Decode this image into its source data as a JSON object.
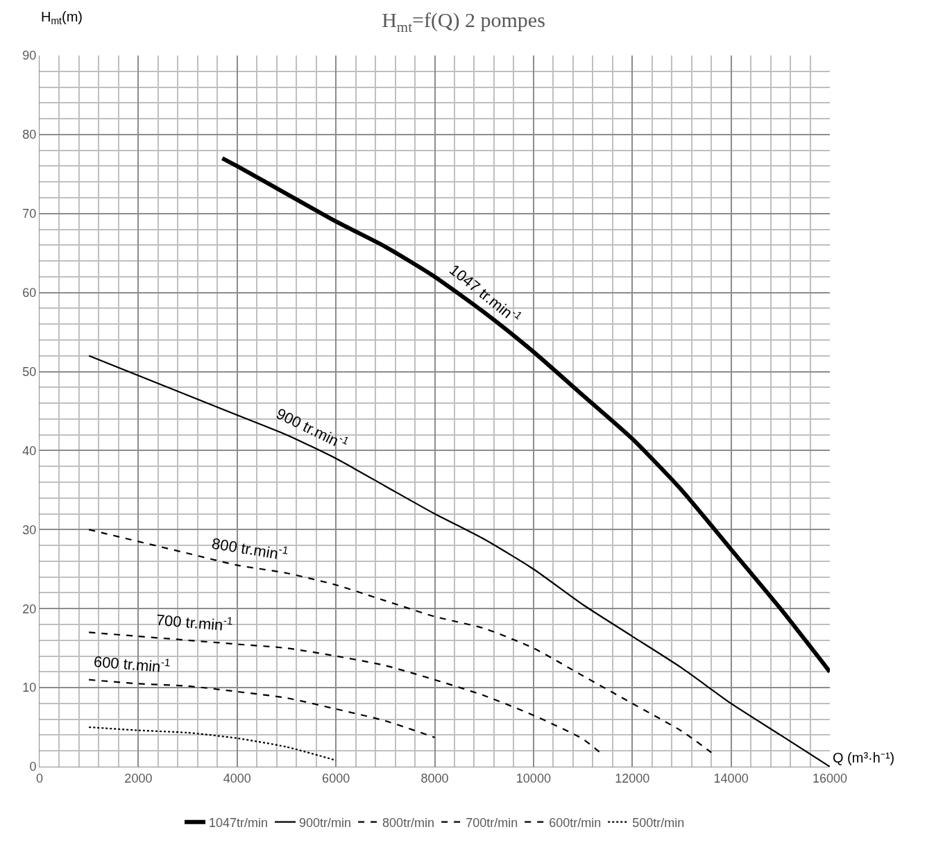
{
  "chart_data": {
    "type": "line",
    "title": "H$_{mt}$=f(Q) 2 pompes",
    "xlabel": "Q (m³·h⁻¹)",
    "ylabel": "H$_{mt}$(m)",
    "xlim": [
      0,
      16000
    ],
    "xticks": [
      0,
      2000,
      4000,
      6000,
      8000,
      10000,
      12000,
      14000,
      16000
    ],
    "ylim": [
      0,
      90
    ],
    "yticks": [
      0,
      10,
      20,
      30,
      40,
      50,
      60,
      70,
      80,
      90
    ],
    "grid": true,
    "legend": "bottom",
    "marker": "none",
    "series": [
      {
        "name": "1047tr/min",
        "color": "#000000",
        "line_style": "solid",
        "x": [
          3700,
          4000,
          5000,
          6000,
          7000,
          8000,
          9000,
          10000,
          11000,
          12000,
          13000,
          14000,
          15000,
          16000
        ],
        "values": [
          77,
          76,
          72.5,
          69,
          65.8,
          62,
          57.5,
          52.5,
          47,
          41.5,
          35,
          27.5,
          20,
          12
        ]
      },
      {
        "name": "900tr/min",
        "color": "#000000",
        "line_style": "solid",
        "x": [
          1000,
          2000,
          3000,
          4000,
          5000,
          6000,
          7000,
          8000,
          9000,
          10000,
          11000,
          12000,
          13000,
          14000,
          15000,
          16000
        ],
        "values": [
          52,
          49.5,
          47,
          44.5,
          42,
          39,
          35.5,
          32,
          28.8,
          25,
          20.5,
          16.5,
          12.5,
          8,
          4,
          0
        ]
      },
      {
        "name": "800tr/min",
        "color": "#000000",
        "line_style": "dashed",
        "x": [
          1000,
          2000,
          3000,
          4000,
          5000,
          6000,
          7000,
          8000,
          9000,
          10000,
          11000,
          12000,
          13000,
          13600
        ],
        "values": [
          30,
          28.5,
          27,
          25.5,
          24.5,
          23,
          21,
          19,
          17.5,
          15,
          11.5,
          8,
          4.5,
          1.8
        ]
      },
      {
        "name": "700tr/min",
        "color": "#000000",
        "line_style": "dashed",
        "x": [
          1000,
          2000,
          3000,
          4000,
          5000,
          6000,
          7000,
          8000,
          9000,
          10000,
          11000,
          11400
        ],
        "values": [
          17,
          16.5,
          16,
          15.5,
          15,
          14,
          12.8,
          11,
          9,
          6.5,
          3.5,
          1.5
        ]
      },
      {
        "name": "600tr/min",
        "color": "#000000",
        "line_style": "dashed",
        "x": [
          1000,
          2000,
          3000,
          4000,
          5000,
          6000,
          7000,
          8000
        ],
        "values": [
          11,
          10.5,
          10.2,
          9.5,
          8.7,
          7.3,
          5.8,
          3.7
        ]
      },
      {
        "name": "500tr/min",
        "color": "#000000",
        "line_style": "dotted",
        "x": [
          1000,
          2000,
          3000,
          4000,
          5000,
          6000
        ],
        "values": [
          5,
          4.6,
          4.3,
          3.6,
          2.5,
          0.8
        ]
      }
    ],
    "annotations": [
      {
        "text": "1047 tr.min$^{-1}$",
        "x": 9030,
        "y": 57.4
      },
      {
        "text": "900 tr.min$^{-1}$",
        "x": 5520,
        "y": 40.4
      },
      {
        "text": "800 tr.min$^{-1}$",
        "x": 4260,
        "y": 25.2
      },
      {
        "text": "700 tr.min$^{-1}$",
        "x": 3130,
        "y": 15.9
      },
      {
        "text": "600 tr.min$^{-1}$",
        "x": 1870,
        "y": 10.6
      }
    ]
  }
}
